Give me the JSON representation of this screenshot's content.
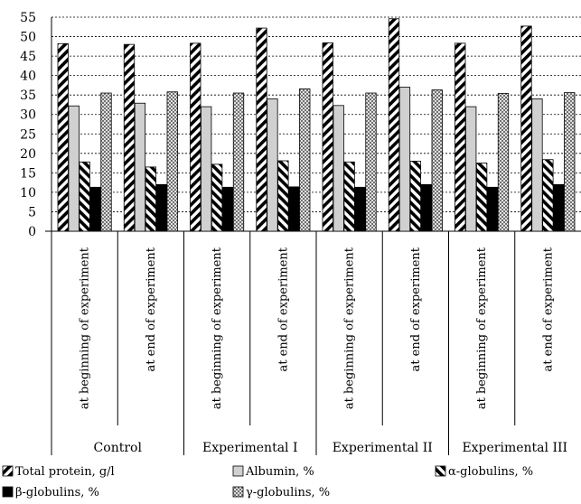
{
  "chart_data": {
    "type": "bar",
    "title": "",
    "xlabel": "",
    "ylabel": "",
    "ylim": [
      0,
      55
    ],
    "yticks": [
      0,
      5,
      10,
      15,
      20,
      25,
      30,
      35,
      40,
      45,
      50,
      55
    ],
    "grid": true,
    "legend_position": "bottom",
    "groups": [
      "Control",
      "Experimental I",
      "Experimental II",
      "Experimental III"
    ],
    "categories": [
      "at beginning of experiment",
      "at end of experiment",
      "at beginning of experiment",
      "at end of experiment",
      "at beginning of experiment",
      "at end of experiment",
      "at beginning of experiment",
      "at end of experiment"
    ],
    "series": [
      {
        "name": "Total protein, g/l",
        "pattern": "diagonal-bold",
        "values": [
          48.2,
          48.0,
          48.3,
          52.2,
          48.4,
          54.6,
          48.3,
          52.7
        ]
      },
      {
        "name": "Albumin, %",
        "pattern": "solid-gray",
        "color": "#d0d0d0",
        "values": [
          32.2,
          32.9,
          32.0,
          34.0,
          32.3,
          37.0,
          32.0,
          34.0
        ]
      },
      {
        "name": "α-globulins, %",
        "pattern": "diagonal-reverse",
        "values": [
          17.8,
          16.5,
          17.2,
          18.1,
          17.8,
          18.0,
          17.5,
          18.4
        ]
      },
      {
        "name": "β-globulins, %",
        "pattern": "solid-black",
        "color": "#000000",
        "values": [
          11.3,
          12.0,
          11.3,
          11.4,
          11.3,
          12.0,
          11.3,
          12.0
        ]
      },
      {
        "name": "γ-globulins, %",
        "pattern": "dotted-grid",
        "values": [
          35.5,
          35.8,
          35.5,
          36.6,
          35.5,
          36.3,
          35.4,
          35.6
        ]
      }
    ]
  }
}
